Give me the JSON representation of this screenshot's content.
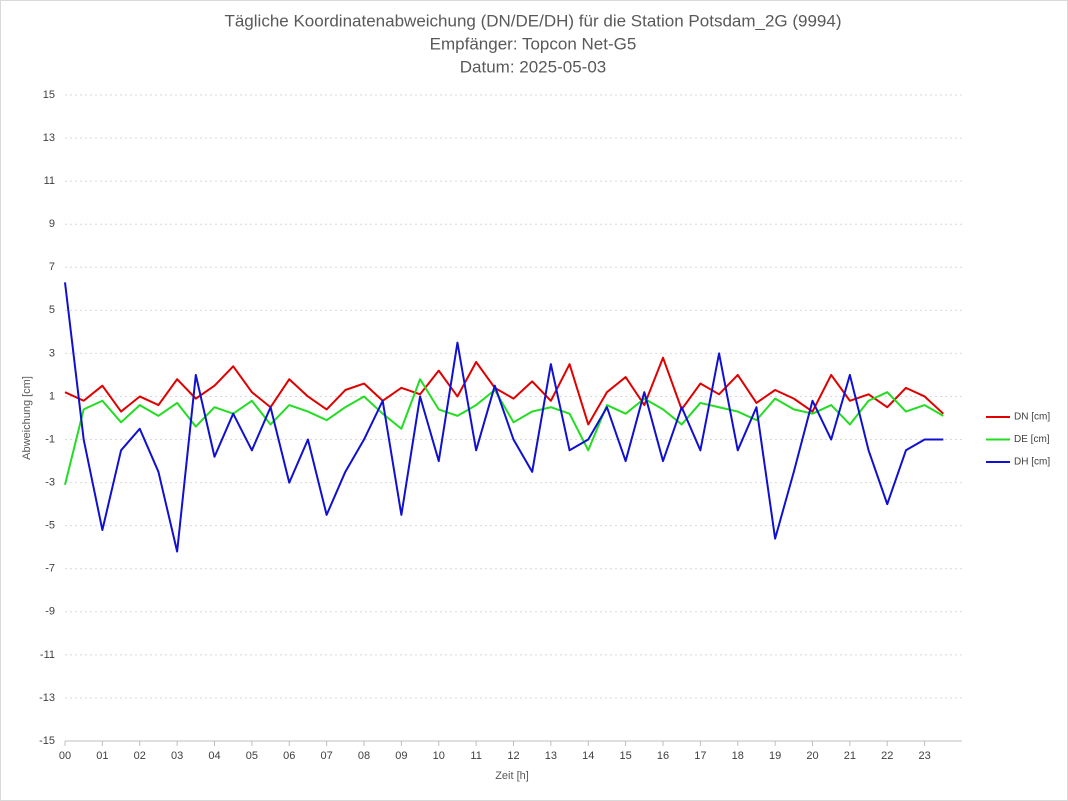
{
  "chart_data": {
    "type": "line",
    "title": "Tägliche Koordinatenabweichung (DN/DE/DH) für die Station Potsdam_2G (9994)",
    "subtitle": "Empfänger: Topcon Net-G5",
    "date_label": "Datum: 2025-05-03",
    "x_label": "Zeit [h]",
    "y_label": "Abweichung [cm]",
    "x": [
      0,
      0.5,
      1,
      1.5,
      2,
      2.5,
      3,
      3.5,
      4,
      4.5,
      5,
      5.5,
      6,
      6.5,
      7,
      7.5,
      8,
      8.5,
      9,
      9.5,
      10,
      10.5,
      11,
      11.5,
      12,
      12.5,
      13,
      13.5,
      14,
      14.5,
      15,
      15.5,
      16,
      16.5,
      17,
      17.5,
      18,
      18.5,
      19,
      19.5,
      20,
      20.5,
      21,
      21.5,
      22,
      22.5,
      23,
      23.5
    ],
    "series": [
      {
        "name": "DN [cm]",
        "color": "#e00000",
        "values": [
          1.2,
          0.8,
          1.5,
          0.3,
          1.0,
          0.6,
          1.8,
          0.9,
          1.5,
          2.4,
          1.2,
          0.5,
          1.8,
          1.0,
          0.4,
          1.3,
          1.6,
          0.8,
          1.4,
          1.1,
          2.2,
          1.0,
          2.6,
          1.4,
          0.9,
          1.7,
          0.8,
          2.5,
          -0.3,
          1.2,
          1.9,
          0.6,
          2.8,
          0.4,
          1.6,
          1.1,
          2.0,
          0.7,
          1.3,
          0.9,
          0.3,
          2.0,
          0.8,
          1.1,
          0.5,
          1.4,
          1.0,
          0.2
        ]
      },
      {
        "name": "DE [cm]",
        "color": "#22dd22",
        "values": [
          -3.1,
          0.4,
          0.8,
          -0.2,
          0.6,
          0.1,
          0.7,
          -0.4,
          0.5,
          0.2,
          0.8,
          -0.3,
          0.6,
          0.3,
          -0.1,
          0.5,
          1.0,
          0.2,
          -0.5,
          1.8,
          0.4,
          0.1,
          0.6,
          1.3,
          -0.2,
          0.3,
          0.5,
          0.2,
          -1.5,
          0.6,
          0.2,
          0.9,
          0.4,
          -0.3,
          0.7,
          0.5,
          0.3,
          -0.1,
          0.9,
          0.4,
          0.2,
          0.6,
          -0.3,
          0.8,
          1.2,
          0.3,
          0.6,
          0.1
        ]
      },
      {
        "name": "DH [cm]",
        "color": "#1010d0",
        "values": [
          6.3,
          -1.0,
          -5.2,
          -1.5,
          -0.5,
          -2.5,
          -6.2,
          2.0,
          -1.8,
          0.2,
          -1.5,
          0.5,
          -3.0,
          -1.0,
          -4.5,
          -2.5,
          -1.0,
          0.8,
          -4.5,
          1.0,
          -2.0,
          3.5,
          -1.5,
          1.5,
          -1.0,
          -2.5,
          2.5,
          -1.5,
          -1.0,
          0.5,
          -2.0,
          1.2,
          -2.0,
          0.5,
          -1.5,
          3.0,
          -1.5,
          0.5,
          -5.6,
          -2.5,
          0.8,
          -1.0,
          2.0,
          -1.5,
          -4.0,
          -1.5,
          -1.0,
          -1.0
        ]
      }
    ],
    "xlim": [
      0,
      24
    ],
    "xticks": [
      {
        "value": 0,
        "label": "00"
      },
      {
        "value": 1,
        "label": "01"
      },
      {
        "value": 2,
        "label": "02"
      },
      {
        "value": 3,
        "label": "03"
      },
      {
        "value": 4,
        "label": "04"
      },
      {
        "value": 5,
        "label": "05"
      },
      {
        "value": 6,
        "label": "06"
      },
      {
        "value": 7,
        "label": "07"
      },
      {
        "value": 8,
        "label": "08"
      },
      {
        "value": 9,
        "label": "09"
      },
      {
        "value": 10,
        "label": "10"
      },
      {
        "value": 11,
        "label": "11"
      },
      {
        "value": 12,
        "label": "12"
      },
      {
        "value": 13,
        "label": "13"
      },
      {
        "value": 14,
        "label": "14"
      },
      {
        "value": 15,
        "label": "15"
      },
      {
        "value": 16,
        "label": "16"
      },
      {
        "value": 17,
        "label": "17"
      },
      {
        "value": 18,
        "label": "18"
      },
      {
        "value": 19,
        "label": "19"
      },
      {
        "value": 20,
        "label": "20"
      },
      {
        "value": 21,
        "label": "21"
      },
      {
        "value": 22,
        "label": "22"
      },
      {
        "value": 23,
        "label": "23"
      }
    ],
    "ylim": [
      -15,
      15
    ],
    "yticks": [
      15,
      13,
      11,
      9,
      7,
      5,
      3,
      1,
      -1,
      -3,
      -5,
      -7,
      -9,
      -11,
      -13,
      -15
    ],
    "grid": true,
    "legend": "right"
  }
}
